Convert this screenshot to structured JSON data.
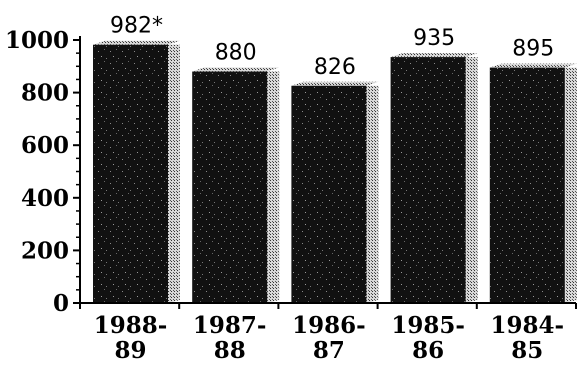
{
  "chart_data": {
    "type": "bar",
    "title": "",
    "xlabel": "",
    "ylabel": "",
    "ylim": [
      0,
      1000
    ],
    "yticks": [
      0,
      200,
      400,
      600,
      800,
      1000
    ],
    "ytick_labels": [
      "0",
      "200",
      "400",
      "600",
      "800",
      "1000"
    ],
    "grid": false,
    "categories": [
      [
        "1988-",
        "89"
      ],
      [
        "1987-",
        "88"
      ],
      [
        "1986-",
        "87"
      ],
      [
        "1985-",
        "86"
      ],
      [
        "1984-",
        "85"
      ]
    ],
    "values": [
      982,
      880,
      826,
      935,
      895
    ],
    "data_labels": [
      "982*",
      "880",
      "826",
      "935",
      "895"
    ],
    "colors": {
      "bar_front": "#111111",
      "bar_side": "#9a9a9a",
      "bar_top": "#c4c4c4",
      "axis": "#000000"
    }
  }
}
